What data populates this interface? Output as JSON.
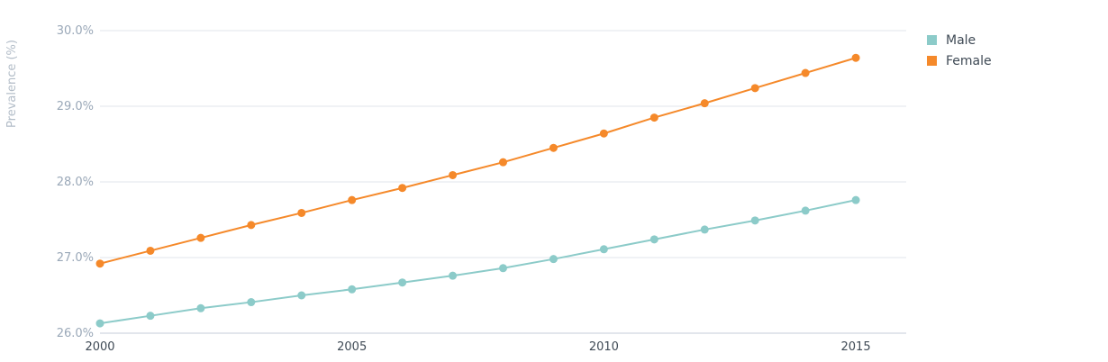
{
  "chart_data": {
    "type": "line",
    "x": [
      2000,
      2001,
      2002,
      2003,
      2004,
      2005,
      2006,
      2007,
      2008,
      2009,
      2010,
      2011,
      2012,
      2013,
      2014,
      2015
    ],
    "series": [
      {
        "name": "Male",
        "color": "#8ccbc9",
        "values": [
          26.13,
          26.23,
          26.33,
          26.41,
          26.5,
          26.58,
          26.67,
          26.76,
          26.86,
          26.98,
          27.11,
          27.24,
          27.37,
          27.49,
          27.62,
          27.76
        ]
      },
      {
        "name": "Female",
        "color": "#f5892a",
        "values": [
          26.92,
          27.09,
          27.26,
          27.43,
          27.59,
          27.76,
          27.92,
          28.09,
          28.26,
          28.45,
          28.64,
          28.85,
          29.04,
          29.24,
          29.44,
          29.64
        ]
      }
    ],
    "ylim": [
      26.0,
      30.0
    ],
    "xlim": [
      2000,
      2016
    ],
    "y_ticks": [
      26.0,
      27.0,
      28.0,
      29.0,
      30.0
    ],
    "y_tick_labels": [
      "26.0%",
      "27.0%",
      "28.0%",
      "29.0%",
      "30.0%"
    ],
    "x_ticks": [
      2000,
      2005,
      2010,
      2015
    ],
    "x_tick_labels": [
      "2000",
      "2005",
      "2010",
      "2015"
    ],
    "title": "",
    "xlabel": "",
    "ylabel": "Prevalence (%)",
    "grid": "horizontal",
    "legend_position": "top-right",
    "grid_color": "#e0e5eb",
    "axis_color": "#c5ced8"
  }
}
